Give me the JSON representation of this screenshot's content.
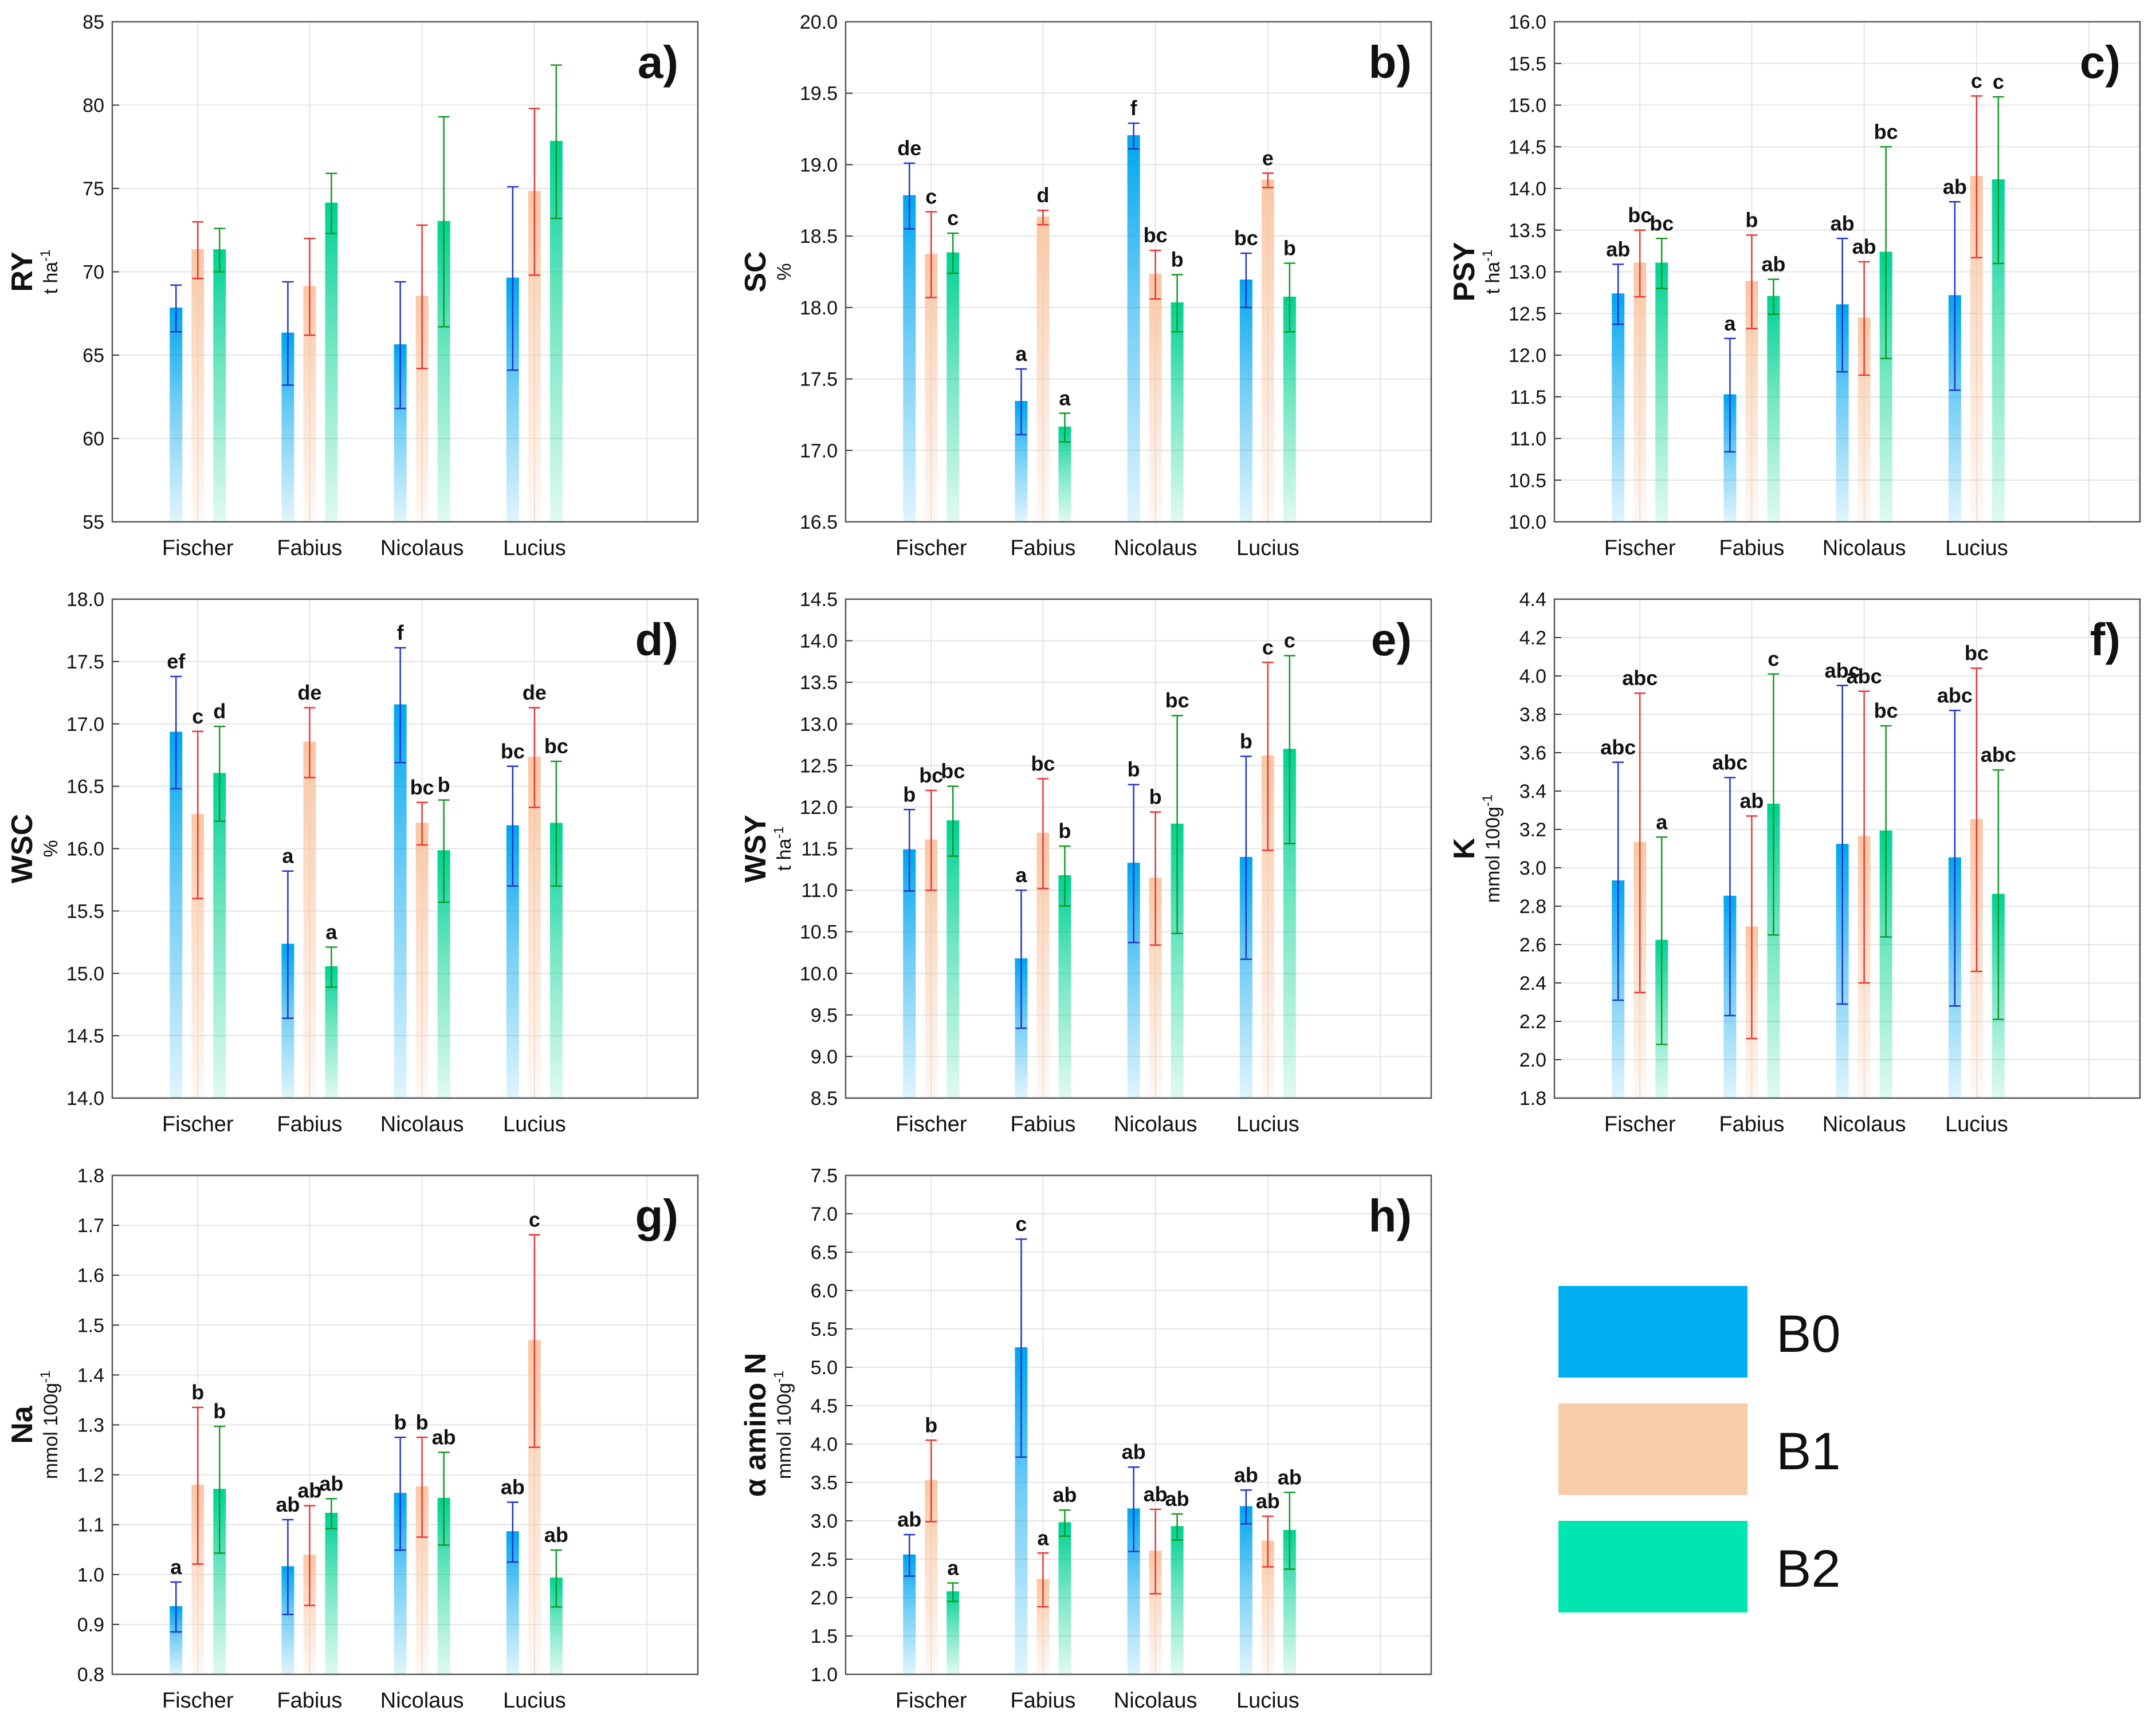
{
  "legend": {
    "entries": [
      {
        "label": "B0",
        "color": "#00b0f0"
      },
      {
        "label": "B1",
        "color": "#f8cba9"
      },
      {
        "label": "B2",
        "color": "#00e6b0"
      }
    ]
  },
  "series_colors": {
    "fill": [
      "#00a6ed",
      "#f9c7a4",
      "#00d293"
    ],
    "error": [
      "#2233cc",
      "#ee3333",
      "#119922"
    ]
  },
  "chart_data": [
    {
      "type": "bar",
      "panel_label": "a)",
      "title": "",
      "ylabel": "RY",
      "unit": "t ha",
      "unit_sup": "-1",
      "ylim": [
        55,
        85
      ],
      "yticks": [
        55,
        60,
        65,
        70,
        75,
        80,
        85
      ],
      "ytick_labels": [
        "55",
        "60",
        "65",
        "70",
        "75",
        "80",
        "85"
      ],
      "categories": [
        "Fischer",
        "Fabius",
        "Nicolaus",
        "Lucius"
      ],
      "series": [
        {
          "name": "B0",
          "values": [
            67.8,
            66.3,
            65.6,
            69.6
          ],
          "errors": [
            1.4,
            3.1,
            3.8,
            5.5
          ],
          "letters": [
            "",
            "",
            "",
            ""
          ]
        },
        {
          "name": "B1",
          "values": [
            71.3,
            69.1,
            68.5,
            74.8
          ],
          "errors": [
            1.7,
            2.9,
            4.3,
            5.0
          ],
          "letters": [
            "",
            "",
            "",
            ""
          ]
        },
        {
          "name": "B2",
          "values": [
            71.3,
            74.1,
            73.0,
            77.8
          ],
          "errors": [
            1.3,
            1.8,
            6.3,
            4.6
          ],
          "letters": [
            "",
            "",
            "",
            ""
          ]
        }
      ]
    },
    {
      "type": "bar",
      "panel_label": "b)",
      "title": "",
      "ylabel": "SC",
      "unit": "%",
      "unit_sup": "",
      "ylim": [
        16.5,
        20.0
      ],
      "yticks": [
        16.5,
        17.0,
        17.5,
        18.0,
        18.5,
        19.0,
        19.5,
        20.0
      ],
      "ytick_labels": [
        "16.5",
        "17.0",
        "17.5",
        "18.0",
        "18.5",
        "19.0",
        "19.5",
        "20.0"
      ],
      "categories": [
        "Fischer",
        "Fabius",
        "Nicolaus",
        "Lucius"
      ],
      "series": [
        {
          "name": "B0",
          "values": [
            18.78,
            17.34,
            19.2,
            18.19
          ],
          "errors": [
            0.23,
            0.23,
            0.09,
            0.19
          ],
          "letters": [
            "de",
            "a",
            "f",
            "bc"
          ]
        },
        {
          "name": "B1",
          "values": [
            18.37,
            18.63,
            18.23,
            18.89
          ],
          "errors": [
            0.3,
            0.05,
            0.17,
            0.05
          ],
          "letters": [
            "c",
            "d",
            "bc",
            "e"
          ]
        },
        {
          "name": "B2",
          "values": [
            18.38,
            17.16,
            18.03,
            18.07
          ],
          "errors": [
            0.14,
            0.1,
            0.2,
            0.24
          ],
          "letters": [
            "c",
            "a",
            "b",
            "b"
          ]
        }
      ]
    },
    {
      "type": "bar",
      "panel_label": "c)",
      "title": "",
      "ylabel": "PSY",
      "unit": "t ha",
      "unit_sup": "-1",
      "ylim": [
        10.0,
        16.0
      ],
      "yticks": [
        10.0,
        10.5,
        11.0,
        11.5,
        12.0,
        12.5,
        13.0,
        13.5,
        14.0,
        14.5,
        15.0,
        15.5,
        16.0
      ],
      "ytick_labels": [
        "10.0",
        "10.5",
        "11.0",
        "11.5",
        "12.0",
        "12.5",
        "13.0",
        "13.5",
        "14.0",
        "14.5",
        "15.0",
        "15.5",
        "16.0"
      ],
      "categories": [
        "Fischer",
        "Fabius",
        "Nicolaus",
        "Lucius"
      ],
      "series": [
        {
          "name": "B0",
          "values": [
            12.73,
            11.52,
            12.6,
            12.71
          ],
          "errors": [
            0.36,
            0.68,
            0.8,
            1.13
          ],
          "letters": [
            "ab",
            "a",
            "ab",
            "ab"
          ]
        },
        {
          "name": "B1",
          "values": [
            13.1,
            12.88,
            12.44,
            14.14
          ],
          "errors": [
            0.4,
            0.56,
            0.68,
            0.97
          ],
          "letters": [
            "bc",
            "b",
            "ab",
            "c"
          ]
        },
        {
          "name": "B2",
          "values": [
            13.1,
            12.7,
            13.23,
            14.1
          ],
          "errors": [
            0.3,
            0.21,
            1.27,
            1.0
          ],
          "letters": [
            "bc",
            "ab",
            "bc",
            "c"
          ]
        }
      ]
    },
    {
      "type": "bar",
      "panel_label": "d)",
      "title": "",
      "ylabel": "WSC",
      "unit": "%",
      "unit_sup": "",
      "ylim": [
        14.0,
        18.0
      ],
      "yticks": [
        14.0,
        14.5,
        15.0,
        15.5,
        16.0,
        16.5,
        17.0,
        17.5,
        18.0
      ],
      "ytick_labels": [
        "14.0",
        "14.5",
        "15.0",
        "15.5",
        "16.0",
        "16.5",
        "17.0",
        "17.5",
        "18.0"
      ],
      "categories": [
        "Fischer",
        "Fabius",
        "Nicolaus",
        "Lucius"
      ],
      "series": [
        {
          "name": "B0",
          "values": [
            16.93,
            15.23,
            17.15,
            16.18
          ],
          "errors": [
            0.45,
            0.59,
            0.46,
            0.48
          ],
          "letters": [
            "ef",
            "a",
            "f",
            "bc"
          ]
        },
        {
          "name": "B1",
          "values": [
            16.27,
            16.85,
            16.2,
            16.73
          ],
          "errors": [
            0.67,
            0.28,
            0.17,
            0.4
          ],
          "letters": [
            "c",
            "de",
            "bc",
            "de"
          ]
        },
        {
          "name": "B2",
          "values": [
            16.6,
            15.05,
            15.98,
            16.2
          ],
          "errors": [
            0.38,
            0.16,
            0.41,
            0.5
          ],
          "letters": [
            "d",
            "a",
            "b",
            "bc"
          ]
        }
      ]
    },
    {
      "type": "bar",
      "panel_label": "e)",
      "title": "",
      "ylabel": "WSY",
      "unit": "t ha",
      "unit_sup": "-1",
      "ylim": [
        8.5,
        14.5
      ],
      "yticks": [
        8.5,
        9.0,
        9.5,
        10.0,
        10.5,
        11.0,
        11.5,
        12.0,
        12.5,
        13.0,
        13.5,
        14.0,
        14.5
      ],
      "ytick_labels": [
        "8.5",
        "9.0",
        "9.5",
        "10.0",
        "10.5",
        "11.0",
        "11.5",
        "12.0",
        "12.5",
        "13.0",
        "13.5",
        "14.0",
        "14.5"
      ],
      "categories": [
        "Fischer",
        "Fabius",
        "Nicolaus",
        "Lucius"
      ],
      "series": [
        {
          "name": "B0",
          "values": [
            11.48,
            10.17,
            11.32,
            11.39
          ],
          "errors": [
            0.49,
            0.83,
            0.95,
            1.22
          ],
          "letters": [
            "b",
            "a",
            "b",
            "b"
          ]
        },
        {
          "name": "B1",
          "values": [
            11.6,
            11.68,
            11.14,
            12.61
          ],
          "errors": [
            0.6,
            0.66,
            0.8,
            1.13
          ],
          "letters": [
            "bc",
            "bc",
            "b",
            "c"
          ]
        },
        {
          "name": "B2",
          "values": [
            11.83,
            11.17,
            11.79,
            12.69
          ],
          "errors": [
            0.42,
            0.36,
            1.31,
            1.13
          ],
          "letters": [
            "bc",
            "b",
            "bc",
            "c"
          ]
        }
      ]
    },
    {
      "type": "bar",
      "panel_label": "f)",
      "title": "",
      "ylabel": "K",
      "unit": "mmol 100g",
      "unit_sup": "-1",
      "ylim": [
        1.8,
        4.4
      ],
      "yticks": [
        1.8,
        2.0,
        2.2,
        2.4,
        2.6,
        2.8,
        3.0,
        3.2,
        3.4,
        3.6,
        3.8,
        4.0,
        4.2,
        4.4
      ],
      "ytick_labels": [
        "1.8",
        "2.0",
        "2.2",
        "2.4",
        "2.6",
        "2.8",
        "3.0",
        "3.2",
        "3.4",
        "3.6",
        "3.8",
        "4.0",
        "4.2",
        "4.4"
      ],
      "categories": [
        "Fischer",
        "Fabius",
        "Nicolaus",
        "Lucius"
      ],
      "series": [
        {
          "name": "B0",
          "values": [
            2.93,
            2.85,
            3.12,
            3.05
          ],
          "errors": [
            0.62,
            0.62,
            0.83,
            0.77
          ],
          "letters": [
            "abc",
            "abc",
            "abc",
            "abc"
          ]
        },
        {
          "name": "B1",
          "values": [
            3.13,
            2.69,
            3.16,
            3.25
          ],
          "errors": [
            0.78,
            0.58,
            0.76,
            0.79
          ],
          "letters": [
            "abc",
            "ab",
            "abc",
            "bc"
          ]
        },
        {
          "name": "B2",
          "values": [
            2.62,
            3.33,
            3.19,
            2.86
          ],
          "errors": [
            0.54,
            0.68,
            0.55,
            0.65
          ],
          "letters": [
            "a",
            "c",
            "bc",
            "abc"
          ]
        }
      ]
    },
    {
      "type": "bar",
      "panel_label": "g)",
      "title": "",
      "ylabel": "Na",
      "unit": "mmol 100g",
      "unit_sup": "-1",
      "ylim": [
        0.8,
        1.8
      ],
      "yticks": [
        0.8,
        0.9,
        1.0,
        1.1,
        1.2,
        1.3,
        1.4,
        1.5,
        1.6,
        1.7,
        1.8
      ],
      "ytick_labels": [
        "0.8",
        "0.9",
        "1.0",
        "1.1",
        "1.2",
        "1.3",
        "1.4",
        "1.5",
        "1.6",
        "1.7",
        "1.8"
      ],
      "categories": [
        "Fischer",
        "Fabius",
        "Nicolaus",
        "Lucius"
      ],
      "series": [
        {
          "name": "B0",
          "values": [
            0.935,
            1.015,
            1.162,
            1.085
          ],
          "errors": [
            0.05,
            0.095,
            0.113,
            0.06
          ],
          "letters": [
            "a",
            "ab",
            "b",
            "ab"
          ]
        },
        {
          "name": "B1",
          "values": [
            1.178,
            1.038,
            1.175,
            1.468
          ],
          "errors": [
            0.157,
            0.1,
            0.1,
            0.213
          ],
          "letters": [
            "b",
            "ab",
            "b",
            "c"
          ]
        },
        {
          "name": "B2",
          "values": [
            1.17,
            1.122,
            1.152,
            0.992
          ],
          "errors": [
            0.127,
            0.03,
            0.093,
            0.057
          ],
          "letters": [
            "b",
            "ab",
            "ab",
            "ab"
          ]
        }
      ]
    },
    {
      "type": "bar",
      "panel_label": "h)",
      "title": "",
      "ylabel": "α amino N",
      "unit": "mmol 100g",
      "unit_sup": "-1",
      "ylim": [
        1.0,
        7.5
      ],
      "yticks": [
        1.0,
        1.5,
        2.0,
        2.5,
        3.0,
        3.5,
        4.0,
        4.5,
        5.0,
        5.5,
        6.0,
        6.5,
        7.0,
        7.5
      ],
      "ytick_labels": [
        "1.0",
        "1.5",
        "2.0",
        "2.5",
        "3.0",
        "3.5",
        "4.0",
        "4.5",
        "5.0",
        "5.5",
        "6.0",
        "6.5",
        "7.0",
        "7.5"
      ],
      "categories": [
        "Fischer",
        "Fabius",
        "Nicolaus",
        "Lucius"
      ],
      "series": [
        {
          "name": "B0",
          "values": [
            2.55,
            5.25,
            3.15,
            3.18
          ],
          "errors": [
            0.27,
            1.42,
            0.55,
            0.22
          ],
          "letters": [
            "ab",
            "c",
            "ab",
            "ab"
          ]
        },
        {
          "name": "B1",
          "values": [
            3.52,
            2.23,
            2.6,
            2.73
          ],
          "errors": [
            0.53,
            0.35,
            0.55,
            0.33
          ],
          "letters": [
            "b",
            "a",
            "ab",
            "ab"
          ]
        },
        {
          "name": "B2",
          "values": [
            2.07,
            2.97,
            2.92,
            2.87
          ],
          "errors": [
            0.12,
            0.17,
            0.17,
            0.5
          ],
          "letters": [
            "a",
            "ab",
            "ab",
            "ab"
          ]
        }
      ]
    }
  ]
}
